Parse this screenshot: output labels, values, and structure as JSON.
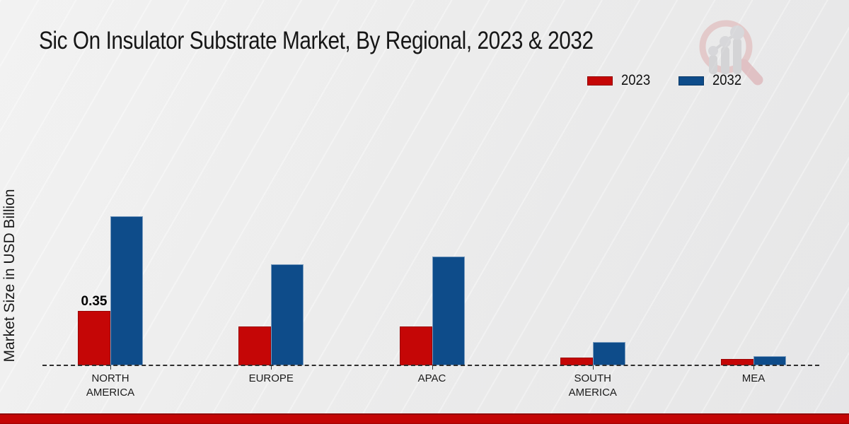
{
  "page": {
    "title": "Sic On Insulator Substrate Market, By Regional, 2023 & 2032"
  },
  "axes": {
    "y_label": "Market Size in USD Billion"
  },
  "legend": {
    "items": [
      {
        "label": "2023",
        "color": "#c50606"
      },
      {
        "label": "2032",
        "color": "#0e4c8a"
      }
    ]
  },
  "watermark": {
    "icon": "magnifier-bar-chart-logo-icon",
    "circle_color": "#dfb0b0",
    "bars_color": "#c3c3c7"
  },
  "footer": {
    "strip_color": "#c40505"
  },
  "chart_data": {
    "type": "bar",
    "title": "Sic On Insulator Substrate Market, By Regional, 2023 & 2032",
    "xlabel": "",
    "ylabel": "Market Size in USD Billion",
    "unit": "USD Billion",
    "categories": [
      "NORTH AMERICA",
      "EUROPE",
      "APAC",
      "SOUTH AMERICA",
      "MEA"
    ],
    "series": [
      {
        "name": "2023",
        "color": "#c50606",
        "values": [
          0.35,
          0.25,
          0.25,
          0.05,
          0.04
        ]
      },
      {
        "name": "2032",
        "color": "#0e4c8a",
        "values": [
          0.96,
          0.65,
          0.7,
          0.15,
          0.06
        ]
      }
    ],
    "data_labels": [
      {
        "series_index": 0,
        "category_index": 0,
        "text": "0.35"
      }
    ],
    "ylim": [
      0,
      1.0
    ],
    "grid": false,
    "axis_style": "dashed-baseline-only",
    "legend_position": "top-right"
  }
}
